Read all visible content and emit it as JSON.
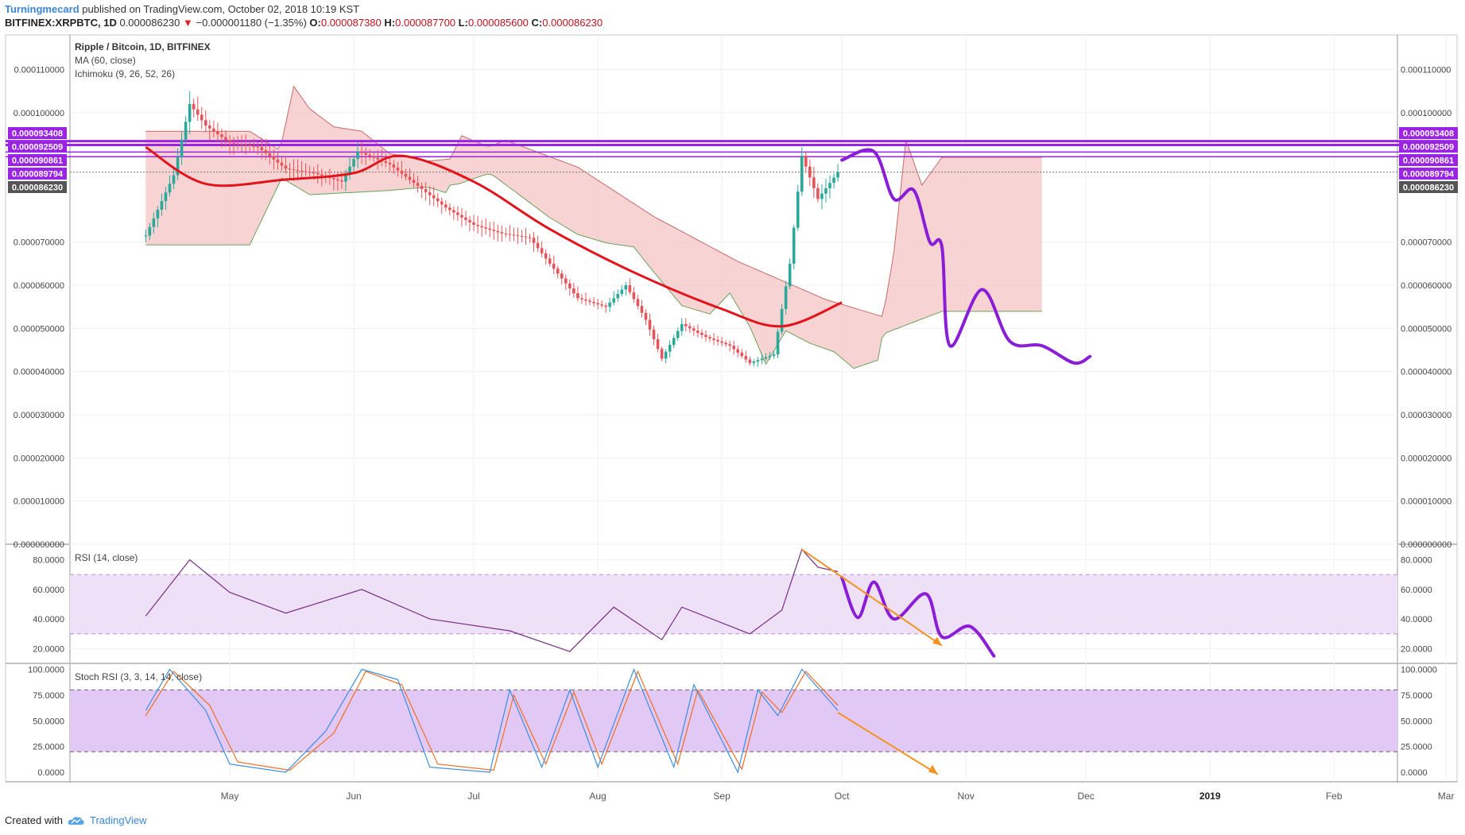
{
  "header": {
    "author": "Turningmecard",
    "published_text": "published on TradingView.com, October 02, 2018 10:19 KST",
    "symbol": "BITFINEX:XRPBTC, 1D",
    "last_price": "0.000086230",
    "change_arrow": "▼",
    "change": "−0.000001180 (−1.35%)",
    "ohlc": [
      {
        "label": "O:",
        "value": "0.000087380"
      },
      {
        "label": "H:",
        "value": "0.000087700"
      },
      {
        "label": "L:",
        "value": "0.000085600"
      },
      {
        "label": "C:",
        "value": "0.000086230"
      }
    ]
  },
  "footer": {
    "created_with": "Created with",
    "brand": "TradingView"
  },
  "colors": {
    "ma": "#e3131b",
    "drawing": "#8a1ed6",
    "arrow": "#f39322",
    "rsi": "#7a2d86",
    "rsi_band": "#ede0f7",
    "stoch_k": "#3b8ee0",
    "stoch_d": "#f26d21",
    "stoch_band": "#e2c8f5",
    "up_candle": "#2aa89a",
    "down_candle": "#e5545a",
    "cloud_bear": "#f6c4c4",
    "cloud_bull": "#cfe8c8",
    "level_tag": "#9b23e3",
    "price_tag": "#555555"
  },
  "chart_data": [
    {
      "type": "candlestick",
      "title": "Ripple / Bitcoin, 1D, BITFINEX",
      "indicators": [
        "MA (60, close)",
        "Ichimoku (9, 26, 52, 26)"
      ],
      "ylim": [
        0,
        0.000118
      ],
      "y_ticks": [
        "0.000110000",
        "0.000100000",
        "0.000070000",
        "0.000060000",
        "0.000050000",
        "0.000040000",
        "0.000030000",
        "0.000020000",
        "0.000010000",
        "0.000000000"
      ],
      "x_ticks": [
        "May",
        "Jun",
        "Jul",
        "Aug",
        "Sep",
        "Oct",
        "Nov",
        "Dec",
        "2019",
        "Feb",
        "Mar"
      ],
      "horizontal_levels": [
        {
          "label": "0.000093408",
          "value": 9.3408e-05
        },
        {
          "label": "0.000092509",
          "value": 9.2509e-05
        },
        {
          "label": "0.000090861",
          "value": 9.0861e-05
        },
        {
          "label": "0.000089794",
          "value": 8.9794e-05
        }
      ],
      "last_price_label": "0.000086230",
      "last_price": 8.623e-05,
      "price_points": [
        {
          "date": "2018-04-10",
          "close": 7.15e-05
        },
        {
          "date": "2018-04-17",
          "close": 8.55e-05
        },
        {
          "date": "2018-04-21",
          "close": 0.000102
        },
        {
          "date": "2018-04-25",
          "close": 9.7e-05
        },
        {
          "date": "2018-05-01",
          "close": 9.3e-05
        },
        {
          "date": "2018-05-08",
          "close": 9.2e-05
        },
        {
          "date": "2018-05-15",
          "close": 8.7e-05
        },
        {
          "date": "2018-05-22",
          "close": 8.6e-05
        },
        {
          "date": "2018-05-29",
          "close": 8.4e-05
        },
        {
          "date": "2018-06-02",
          "close": 9.1e-05
        },
        {
          "date": "2018-06-10",
          "close": 8.8e-05
        },
        {
          "date": "2018-06-17",
          "close": 8.3e-05
        },
        {
          "date": "2018-06-24",
          "close": 7.8e-05
        },
        {
          "date": "2018-07-01",
          "close": 7.4e-05
        },
        {
          "date": "2018-07-08",
          "close": 7.2e-05
        },
        {
          "date": "2018-07-15",
          "close": 7.1e-05
        },
        {
          "date": "2018-07-20",
          "close": 6.5e-05
        },
        {
          "date": "2018-07-27",
          "close": 5.7e-05
        },
        {
          "date": "2018-08-03",
          "close": 5.5e-05
        },
        {
          "date": "2018-08-08",
          "close": 6e-05
        },
        {
          "date": "2018-08-13",
          "close": 5.2e-05
        },
        {
          "date": "2018-08-17",
          "close": 4.3e-05
        },
        {
          "date": "2018-08-22",
          "close": 5.1e-05
        },
        {
          "date": "2018-08-28",
          "close": 4.8e-05
        },
        {
          "date": "2018-09-03",
          "close": 4.6e-05
        },
        {
          "date": "2018-09-08",
          "close": 4.2e-05
        },
        {
          "date": "2018-09-14",
          "close": 4.4e-05
        },
        {
          "date": "2018-09-18",
          "close": 6.5e-05
        },
        {
          "date": "2018-09-21",
          "close": 9e-05
        },
        {
          "date": "2018-09-25",
          "close": 8e-05
        },
        {
          "date": "2018-09-30",
          "close": 8.62e-05
        }
      ],
      "ma60_points": [
        {
          "date": "2018-04-10",
          "value": 9.2e-05
        },
        {
          "date": "2018-04-25",
          "value": 8.35e-05
        },
        {
          "date": "2018-05-15",
          "value": 8.45e-05
        },
        {
          "date": "2018-06-01",
          "value": 8.6e-05
        },
        {
          "date": "2018-06-13",
          "value": 9e-05
        },
        {
          "date": "2018-07-01",
          "value": 8.4e-05
        },
        {
          "date": "2018-07-20",
          "value": 7.3e-05
        },
        {
          "date": "2018-08-10",
          "value": 6.3e-05
        },
        {
          "date": "2018-09-01",
          "value": 5.45e-05
        },
        {
          "date": "2018-09-16",
          "value": 5.05e-05
        },
        {
          "date": "2018-10-01",
          "value": 5.6e-05
        }
      ],
      "projection_points": [
        {
          "date": "2018-10-01",
          "value": 8.9e-05
        },
        {
          "date": "2018-10-09",
          "value": 9.1e-05
        },
        {
          "date": "2018-10-14",
          "value": 8e-05
        },
        {
          "date": "2018-10-19",
          "value": 8.2e-05
        },
        {
          "date": "2018-10-23",
          "value": 7e-05
        },
        {
          "date": "2018-10-26",
          "value": 6.9e-05
        },
        {
          "date": "2018-10-28",
          "value": 4.6e-05
        },
        {
          "date": "2018-11-05",
          "value": 5.9e-05
        },
        {
          "date": "2018-11-12",
          "value": 4.7e-05
        },
        {
          "date": "2018-11-20",
          "value": 4.6e-05
        },
        {
          "date": "2018-11-28",
          "value": 4.2e-05
        },
        {
          "date": "2018-12-02",
          "value": 4.35e-05
        }
      ]
    },
    {
      "type": "line",
      "title": "RSI (14, close)",
      "ylim": [
        10,
        90
      ],
      "y_ticks": [
        "80.0000",
        "60.0000",
        "40.0000",
        "20.0000"
      ],
      "band": [
        30,
        70
      ],
      "series": [
        {
          "values_by_date": [
            {
              "date": "2018-04-10",
              "value": 42
            },
            {
              "date": "2018-04-21",
              "value": 80
            },
            {
              "date": "2018-05-01",
              "value": 58
            },
            {
              "date": "2018-05-15",
              "value": 44
            },
            {
              "date": "2018-06-03",
              "value": 60
            },
            {
              "date": "2018-06-20",
              "value": 40
            },
            {
              "date": "2018-07-10",
              "value": 32
            },
            {
              "date": "2018-07-25",
              "value": 18
            },
            {
              "date": "2018-08-05",
              "value": 48
            },
            {
              "date": "2018-08-17",
              "value": 26
            },
            {
              "date": "2018-08-22",
              "value": 48
            },
            {
              "date": "2018-09-08",
              "value": 30
            },
            {
              "date": "2018-09-16",
              "value": 46
            },
            {
              "date": "2018-09-21",
              "value": 87
            },
            {
              "date": "2018-09-25",
              "value": 75
            },
            {
              "date": "2018-09-30",
              "value": 72
            }
          ]
        }
      ],
      "projection_points": [
        {
          "date": "2018-10-01",
          "value": 68
        },
        {
          "date": "2018-10-05",
          "value": 41
        },
        {
          "date": "2018-10-09",
          "value": 65
        },
        {
          "date": "2018-10-14",
          "value": 40
        },
        {
          "date": "2018-10-22",
          "value": 57
        },
        {
          "date": "2018-10-26",
          "value": 28
        },
        {
          "date": "2018-11-02",
          "value": 35
        },
        {
          "date": "2018-11-08",
          "value": 15
        }
      ]
    },
    {
      "type": "line",
      "title": "Stoch RSI (3, 3, 14, 14, close)",
      "ylim": [
        -10,
        105
      ],
      "y_ticks": [
        "100.0000",
        "75.0000",
        "50.0000",
        "25.0000",
        "0.0000"
      ],
      "band": [
        20,
        80
      ],
      "series": [
        {
          "name": "K",
          "values_by_date": [
            {
              "date": "2018-04-10",
              "value": 60
            },
            {
              "date": "2018-04-16",
              "value": 100
            },
            {
              "date": "2018-04-25",
              "value": 60
            },
            {
              "date": "2018-05-01",
              "value": 8
            },
            {
              "date": "2018-05-15",
              "value": 0
            },
            {
              "date": "2018-05-25",
              "value": 40
            },
            {
              "date": "2018-06-03",
              "value": 100
            },
            {
              "date": "2018-06-12",
              "value": 90
            },
            {
              "date": "2018-06-20",
              "value": 5
            },
            {
              "date": "2018-07-05",
              "value": 0
            },
            {
              "date": "2018-07-10",
              "value": 80
            },
            {
              "date": "2018-07-18",
              "value": 5
            },
            {
              "date": "2018-07-25",
              "value": 80
            },
            {
              "date": "2018-08-01",
              "value": 5
            },
            {
              "date": "2018-08-10",
              "value": 100
            },
            {
              "date": "2018-08-20",
              "value": 5
            },
            {
              "date": "2018-08-25",
              "value": 85
            },
            {
              "date": "2018-09-05",
              "value": 0
            },
            {
              "date": "2018-09-10",
              "value": 80
            },
            {
              "date": "2018-09-15",
              "value": 55
            },
            {
              "date": "2018-09-21",
              "value": 100
            },
            {
              "date": "2018-09-30",
              "value": 60
            }
          ]
        },
        {
          "name": "D",
          "values_by_date": [
            {
              "date": "2018-04-10",
              "value": 55
            },
            {
              "date": "2018-04-17",
              "value": 98
            },
            {
              "date": "2018-04-26",
              "value": 65
            },
            {
              "date": "2018-05-03",
              "value": 10
            },
            {
              "date": "2018-05-16",
              "value": 2
            },
            {
              "date": "2018-05-27",
              "value": 38
            },
            {
              "date": "2018-06-04",
              "value": 98
            },
            {
              "date": "2018-06-13",
              "value": 85
            },
            {
              "date": "2018-06-22",
              "value": 8
            },
            {
              "date": "2018-07-06",
              "value": 2
            },
            {
              "date": "2018-07-11",
              "value": 75
            },
            {
              "date": "2018-07-19",
              "value": 8
            },
            {
              "date": "2018-07-26",
              "value": 78
            },
            {
              "date": "2018-08-02",
              "value": 8
            },
            {
              "date": "2018-08-11",
              "value": 98
            },
            {
              "date": "2018-08-21",
              "value": 8
            },
            {
              "date": "2018-08-26",
              "value": 80
            },
            {
              "date": "2018-09-06",
              "value": 3
            },
            {
              "date": "2018-09-11",
              "value": 78
            },
            {
              "date": "2018-09-16",
              "value": 58
            },
            {
              "date": "2018-09-22",
              "value": 98
            },
            {
              "date": "2018-09-30",
              "value": 65
            }
          ]
        }
      ]
    }
  ]
}
